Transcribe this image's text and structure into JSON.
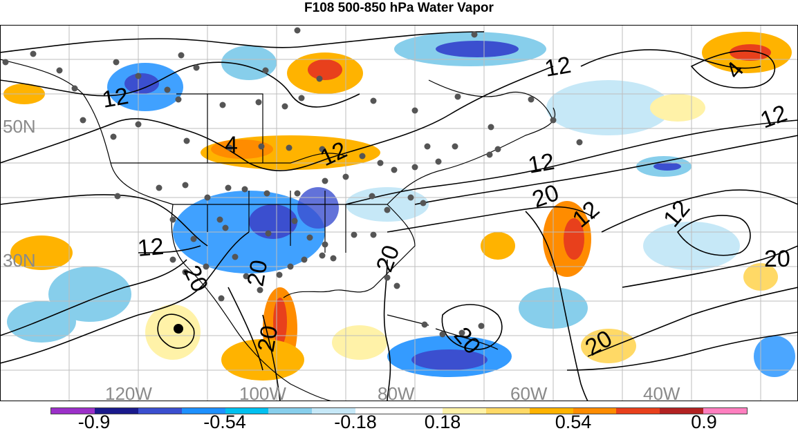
{
  "title": "F108 500-850 hPa Water Vapor",
  "map": {
    "lat_labels": [
      "50N",
      "30N"
    ],
    "lon_labels": [
      "120W",
      "100W",
      "80W",
      "60W",
      "40W"
    ],
    "contour_labels": [
      "12",
      "12",
      "12",
      "12",
      "12",
      "12",
      "12",
      "12",
      "4",
      "4",
      "20",
      "20",
      "20",
      "20",
      "20",
      "20",
      "20",
      "20"
    ]
  },
  "colorbar": {
    "colors": [
      "#9b30c8",
      "#1a1a8c",
      "#3b4fcf",
      "#1e90ff",
      "#00c0f0",
      "#87ceeb",
      "#c6e8f7",
      "#ffffff",
      "#ffffff",
      "#fff2a8",
      "#ffd966",
      "#ffb300",
      "#ff8c00",
      "#e8401c",
      "#b22222",
      "#ff7fbf"
    ],
    "labels": [
      "-0.9",
      "-0.54",
      "-0.18",
      "0.18",
      "0.54",
      "0.9"
    ]
  }
}
